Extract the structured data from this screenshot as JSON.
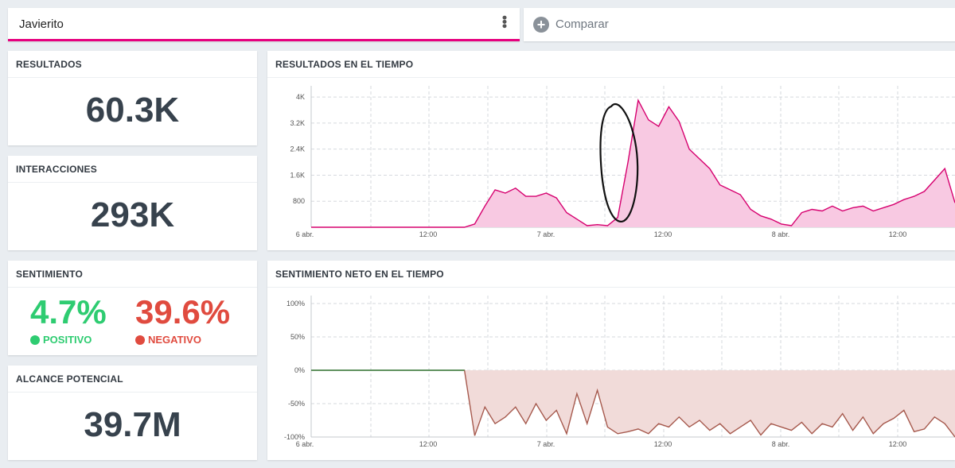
{
  "search": {
    "name": "Javierito"
  },
  "compare": {
    "label": "Comparar",
    "icon": "plus-circle-icon"
  },
  "results": {
    "title": "RESULTADOS",
    "value": "60.3K"
  },
  "interactions": {
    "title": "INTERACCIONES",
    "value": "293K"
  },
  "sentiment": {
    "title": "SENTIMIENTO",
    "positive": {
      "value": "4.7%",
      "label": "POSITIVO",
      "color": "#2ecc71"
    },
    "negative": {
      "value": "39.6%",
      "label": "NEGATIVO",
      "color": "#e04b3f"
    }
  },
  "reach": {
    "title": "ALCANCE POTENCIAL",
    "value": "39.7M"
  },
  "results_chart": {
    "title": "RESULTADOS EN EL TIEMPO"
  },
  "sentiment_chart": {
    "title": "SENTIMIENTO NETO EN EL TIEMPO"
  },
  "chart_data": [
    {
      "type": "area",
      "title": "RESULTADOS EN EL TIEMPO",
      "color": "#d6006f",
      "fill": "#f8c9e2",
      "x_ticks": [
        "6 abr.",
        "12:00",
        "7 abr.",
        "12:00",
        "8 abr.",
        "12:00"
      ],
      "y_ticks": [
        "800",
        "1.6K",
        "2.4K",
        "3.2K",
        "4K"
      ],
      "ylim": [
        0,
        4100
      ],
      "x_range": [
        0,
        63
      ],
      "x": [
        0,
        1,
        2,
        3,
        4,
        5,
        6,
        7,
        8,
        9,
        10,
        11,
        12,
        13,
        14,
        15,
        16,
        17,
        18,
        19,
        20,
        21,
        22,
        23,
        24,
        25,
        26,
        27,
        28,
        29,
        30,
        31,
        32,
        33,
        34,
        35,
        36,
        37,
        38,
        39,
        40,
        41,
        42,
        43,
        44,
        45,
        46,
        47,
        48,
        49,
        50,
        51,
        52,
        53,
        54,
        55,
        56,
        57,
        58,
        59,
        60,
        61,
        62,
        63
      ],
      "values": [
        0,
        0,
        0,
        0,
        0,
        0,
        0,
        0,
        0,
        0,
        0,
        0,
        0,
        0,
        0,
        0,
        100,
        650,
        1150,
        1050,
        1200,
        950,
        950,
        1050,
        900,
        450,
        250,
        50,
        80,
        50,
        300,
        2000,
        3900,
        3300,
        3100,
        3700,
        3250,
        2400,
        2100,
        1800,
        1300,
        1150,
        1000,
        550,
        350,
        250,
        100,
        50,
        450,
        550,
        500,
        650,
        500,
        600,
        650,
        500,
        600,
        700,
        850,
        950,
        1100,
        1450,
        1800,
        750
      ]
    },
    {
      "type": "area",
      "title": "SENTIMIENTO NETO EN EL TIEMPO",
      "color": "#a6594d",
      "fill": "#f1dbd9",
      "neutral_color": "#3a8a48",
      "x_ticks": [
        "6 abr.",
        "12:00",
        "7 abr.",
        "12:00",
        "8 abr.",
        "12:00"
      ],
      "y_ticks": [
        "100%",
        "50%",
        "0%",
        "-50%",
        "-100%"
      ],
      "ylim": [
        -100,
        100
      ],
      "x_range": [
        0,
        63
      ],
      "x": [
        0,
        1,
        2,
        3,
        4,
        5,
        6,
        7,
        8,
        9,
        10,
        11,
        12,
        13,
        14,
        15,
        16,
        17,
        18,
        19,
        20,
        21,
        22,
        23,
        24,
        25,
        26,
        27,
        28,
        29,
        30,
        31,
        32,
        33,
        34,
        35,
        36,
        37,
        38,
        39,
        40,
        41,
        42,
        43,
        44,
        45,
        46,
        47,
        48,
        49,
        50,
        51,
        52,
        53,
        54,
        55,
        56,
        57,
        58,
        59,
        60,
        61,
        62,
        63
      ],
      "values": [
        0,
        0,
        0,
        0,
        0,
        0,
        0,
        0,
        0,
        0,
        0,
        0,
        0,
        0,
        0,
        0,
        -98,
        -55,
        -80,
        -70,
        -55,
        -80,
        -50,
        -75,
        -60,
        -95,
        -35,
        -80,
        -30,
        -85,
        -95,
        -92,
        -88,
        -95,
        -80,
        -85,
        -70,
        -85,
        -75,
        -90,
        -80,
        -95,
        -85,
        -75,
        -97,
        -80,
        -85,
        -90,
        -78,
        -95,
        -80,
        -85,
        -65,
        -90,
        -70,
        -95,
        -80,
        -72,
        -60,
        -92,
        -88,
        -70,
        -80,
        -100
      ]
    }
  ]
}
